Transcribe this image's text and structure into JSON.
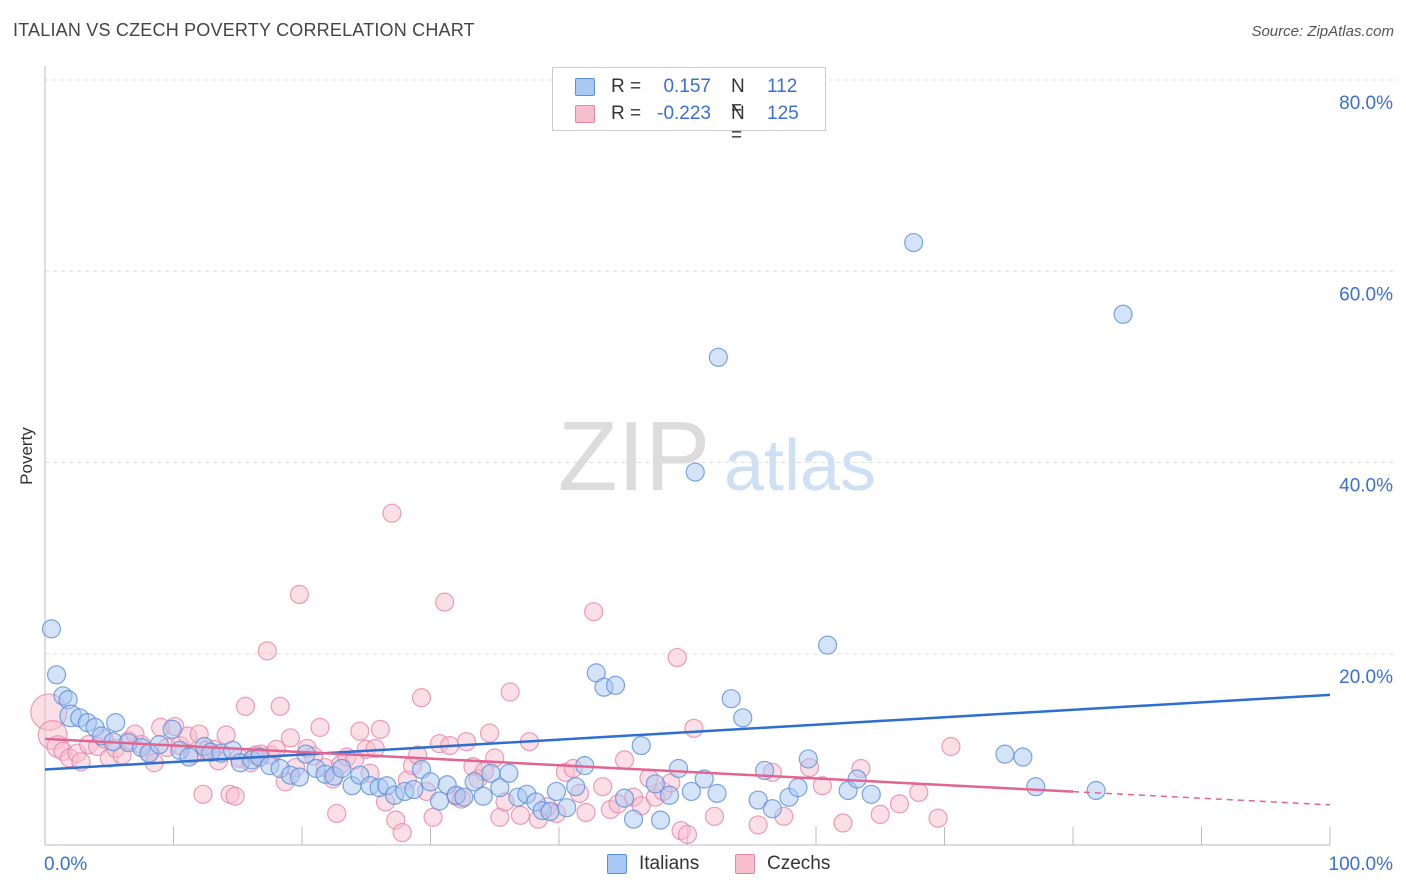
{
  "title": "ITALIAN VS CZECH POVERTY CORRELATION CHART",
  "source": "Source: ZipAtlas.com",
  "watermark": {
    "zip": "ZIP",
    "atlas": "atlas"
  },
  "legend": {
    "rows": [
      {
        "r_label": "R =",
        "r_value": "0.157",
        "n_label": "N =",
        "n_value": "112"
      },
      {
        "r_label": "R =",
        "r_value": "-0.223",
        "n_label": "N =",
        "n_value": "125"
      }
    ]
  },
  "bottom_legend": [
    "Italians",
    "Czechs"
  ],
  "colors": {
    "italians_fill": "#a9c8f2",
    "italians_stroke": "#5b8fdb",
    "italians_line": "#2c6fd1",
    "czechs_fill": "#f6bfd0",
    "czechs_stroke": "#e884a6",
    "czechs_line": "#e2658f",
    "axis_label": "#3a6fd8",
    "grid": "#dddddd"
  },
  "chart_data": {
    "type": "scatter",
    "title": "ITALIAN VS CZECH POVERTY CORRELATION CHART",
    "xlabel": "",
    "ylabel": "Poverty",
    "xlim": [
      0,
      100
    ],
    "ylim": [
      0,
      80
    ],
    "x_tick_labels": [
      "0.0%",
      "100.0%"
    ],
    "y_ticks": [
      20,
      40,
      60,
      80
    ],
    "y_tick_labels": [
      "20.0%",
      "40.0%",
      "60.0%",
      "80.0%"
    ],
    "grid": true,
    "series": [
      {
        "name": "Italians",
        "r": 0.157,
        "n": 112,
        "trend": {
          "x": [
            0,
            100
          ],
          "y": [
            7.9,
            15.7
          ],
          "dashed_from": null
        },
        "points": [
          [
            0.5,
            22.6,
            1
          ],
          [
            0.9,
            17.8,
            1
          ],
          [
            1.4,
            15.6,
            1
          ],
          [
            1.8,
            15.2,
            1
          ],
          [
            2.0,
            13.5,
            1.2
          ],
          [
            2.7,
            13.3,
            1
          ],
          [
            3.3,
            12.8,
            1
          ],
          [
            3.9,
            12.3,
            1
          ],
          [
            4.4,
            11.4,
            1
          ],
          [
            5.5,
            12.8,
            1
          ],
          [
            5.3,
            10.8,
            1
          ],
          [
            6.5,
            10.7,
            1
          ],
          [
            7.5,
            10.2,
            1
          ],
          [
            8.1,
            9.6,
            1
          ],
          [
            8.9,
            10.5,
            1
          ],
          [
            9.9,
            12.1,
            1
          ],
          [
            10.5,
            9.9,
            1
          ],
          [
            11.2,
            9.2,
            1
          ],
          [
            12.4,
            10.3,
            1
          ],
          [
            12.9,
            9.7,
            1
          ],
          [
            13.7,
            9.6,
            1
          ],
          [
            14.6,
            9.9,
            1
          ],
          [
            15.2,
            8.6,
            1
          ],
          [
            16.1,
            8.9,
            1
          ],
          [
            16.7,
            9.2,
            1
          ],
          [
            17.5,
            8.3,
            1
          ],
          [
            18.3,
            8.0,
            1
          ],
          [
            19.1,
            7.3,
            1
          ],
          [
            19.8,
            7.1,
            1
          ],
          [
            20.3,
            9.5,
            1
          ],
          [
            21.1,
            8.0,
            1
          ],
          [
            21.8,
            7.4,
            1
          ],
          [
            22.5,
            7.2,
            1
          ],
          [
            23.1,
            8.0,
            1
          ],
          [
            23.9,
            6.2,
            1
          ],
          [
            24.5,
            7.3,
            1
          ],
          [
            25.3,
            6.2,
            1
          ],
          [
            26.0,
            6.0,
            1
          ],
          [
            26.6,
            6.2,
            1
          ],
          [
            27.2,
            5.2,
            1
          ],
          [
            28.0,
            5.6,
            1
          ],
          [
            28.7,
            5.8,
            1
          ],
          [
            29.3,
            7.9,
            1
          ],
          [
            30.0,
            6.6,
            1
          ],
          [
            30.7,
            4.6,
            1
          ],
          [
            31.3,
            6.3,
            1
          ],
          [
            32.0,
            5.2,
            1
          ],
          [
            32.6,
            5.0,
            1
          ],
          [
            33.4,
            6.6,
            1
          ],
          [
            34.1,
            5.1,
            1
          ],
          [
            34.7,
            7.5,
            1
          ],
          [
            35.4,
            6.0,
            1
          ],
          [
            36.1,
            7.5,
            1
          ],
          [
            36.8,
            5.0,
            1
          ],
          [
            37.5,
            5.3,
            1
          ],
          [
            38.2,
            4.5,
            1
          ],
          [
            38.7,
            3.6,
            1
          ],
          [
            39.3,
            3.5,
            1
          ],
          [
            39.8,
            5.6,
            1
          ],
          [
            40.6,
            3.9,
            1
          ],
          [
            41.3,
            6.1,
            1
          ],
          [
            42.0,
            8.3,
            1
          ],
          [
            42.9,
            18.0,
            1
          ],
          [
            43.5,
            16.5,
            1
          ],
          [
            44.4,
            16.7,
            1
          ],
          [
            45.1,
            4.9,
            1
          ],
          [
            45.8,
            2.7,
            1
          ],
          [
            46.4,
            10.4,
            1
          ],
          [
            47.5,
            6.4,
            1
          ],
          [
            47.9,
            2.6,
            1
          ],
          [
            48.6,
            5.2,
            1
          ],
          [
            49.3,
            8.0,
            1
          ],
          [
            50.3,
            5.6,
            1
          ],
          [
            51.3,
            6.9,
            1
          ],
          [
            52.3,
            5.4,
            1
          ],
          [
            53.4,
            15.3,
            1
          ],
          [
            54.3,
            13.3,
            1
          ],
          [
            55.5,
            4.7,
            1
          ],
          [
            56.0,
            7.8,
            1
          ],
          [
            56.6,
            3.8,
            1
          ],
          [
            57.9,
            5.0,
            1
          ],
          [
            58.6,
            6.0,
            1
          ],
          [
            59.4,
            9.0,
            1
          ],
          [
            60.9,
            20.9,
            1
          ],
          [
            62.5,
            5.7,
            1
          ],
          [
            63.2,
            6.9,
            1
          ],
          [
            64.3,
            5.3,
            1
          ],
          [
            50.6,
            39.0,
            1
          ],
          [
            52.4,
            51.0,
            1
          ],
          [
            67.6,
            63.0,
            1
          ],
          [
            74.7,
            9.5,
            1
          ],
          [
            76.1,
            9.2,
            1
          ],
          [
            77.1,
            6.1,
            1
          ],
          [
            81.8,
            5.7,
            1
          ],
          [
            83.9,
            55.5,
            1
          ]
        ]
      },
      {
        "name": "Czechs",
        "r": -0.223,
        "n": 125,
        "trend": {
          "x": [
            0,
            100
          ],
          "y": [
            11.1,
            4.2
          ],
          "dashed_from": 80
        },
        "points": [
          [
            0.3,
            13.9,
            2.0
          ],
          [
            0.6,
            11.5,
            1.6
          ],
          [
            1.0,
            10.3,
            1.2
          ],
          [
            1.4,
            9.8,
            1
          ],
          [
            1.9,
            9.1,
            1
          ],
          [
            2.5,
            9.6,
            1
          ],
          [
            2.8,
            8.7,
            1
          ],
          [
            3.4,
            10.5,
            1
          ],
          [
            4.1,
            10.3,
            1
          ],
          [
            4.6,
            11.1,
            1
          ],
          [
            5.0,
            9.1,
            1
          ],
          [
            5.5,
            10.1,
            1
          ],
          [
            6.0,
            9.4,
            1
          ],
          [
            6.5,
            10.9,
            1
          ],
          [
            7.0,
            11.6,
            1
          ],
          [
            7.5,
            10.5,
            1
          ],
          [
            8.1,
            9.6,
            1
          ],
          [
            8.5,
            8.6,
            1
          ],
          [
            9.0,
            12.3,
            1
          ],
          [
            9.5,
            10.2,
            1
          ],
          [
            10.1,
            12.4,
            1
          ],
          [
            10.5,
            10.4,
            1
          ],
          [
            11.1,
            11.4,
            1
          ],
          [
            11.5,
            9.5,
            1
          ],
          [
            12.0,
            11.6,
            1
          ],
          [
            12.3,
            5.3,
            1
          ],
          [
            12.6,
            9.9,
            1
          ],
          [
            13.1,
            10.0,
            1
          ],
          [
            13.5,
            8.8,
            1
          ],
          [
            14.1,
            11.5,
            1
          ],
          [
            14.4,
            5.3,
            1
          ],
          [
            14.8,
            5.1,
            1
          ],
          [
            15.1,
            9.1,
            1
          ],
          [
            15.6,
            14.5,
            1
          ],
          [
            16.0,
            8.6,
            1
          ],
          [
            16.4,
            9.4,
            1
          ],
          [
            16.8,
            9.5,
            1
          ],
          [
            17.3,
            20.3,
            1
          ],
          [
            17.6,
            9.4,
            1
          ],
          [
            18.0,
            10.0,
            1
          ],
          [
            18.3,
            14.5,
            1
          ],
          [
            18.7,
            6.6,
            1
          ],
          [
            19.1,
            11.2,
            1
          ],
          [
            19.5,
            8.1,
            1
          ],
          [
            19.8,
            26.2,
            1
          ],
          [
            20.4,
            10.1,
            1
          ],
          [
            20.9,
            9.3,
            1
          ],
          [
            21.4,
            12.3,
            1
          ],
          [
            21.8,
            8.1,
            1
          ],
          [
            22.4,
            6.9,
            1
          ],
          [
            22.7,
            3.3,
            1
          ],
          [
            23.0,
            8.4,
            1
          ],
          [
            23.5,
            9.2,
            1
          ],
          [
            24.1,
            8.9,
            1
          ],
          [
            24.5,
            11.9,
            1
          ],
          [
            25.0,
            10.0,
            1
          ],
          [
            25.3,
            7.5,
            1
          ],
          [
            25.7,
            10.1,
            1
          ],
          [
            26.1,
            12.1,
            1
          ],
          [
            26.5,
            4.5,
            1
          ],
          [
            27.0,
            34.7,
            1
          ],
          [
            27.3,
            2.6,
            1
          ],
          [
            27.8,
            1.3,
            1
          ],
          [
            28.2,
            6.8,
            1
          ],
          [
            28.6,
            8.3,
            1
          ],
          [
            29.0,
            9.4,
            1
          ],
          [
            29.3,
            15.4,
            1
          ],
          [
            29.7,
            5.6,
            1
          ],
          [
            30.2,
            2.9,
            1
          ],
          [
            30.7,
            10.6,
            1
          ],
          [
            31.1,
            25.4,
            1
          ],
          [
            31.5,
            10.4,
            1
          ],
          [
            32.0,
            5.1,
            1
          ],
          [
            32.4,
            4.8,
            1
          ],
          [
            32.8,
            10.8,
            1
          ],
          [
            33.3,
            8.2,
            1
          ],
          [
            33.7,
            6.9,
            1
          ],
          [
            34.2,
            7.7,
            1
          ],
          [
            34.6,
            11.7,
            1
          ],
          [
            35.0,
            9.1,
            1
          ],
          [
            35.4,
            2.9,
            1
          ],
          [
            35.8,
            4.5,
            1
          ],
          [
            36.2,
            16.0,
            1
          ],
          [
            37.0,
            3.1,
            1
          ],
          [
            37.7,
            10.8,
            1
          ],
          [
            38.4,
            2.7,
            1
          ],
          [
            39.1,
            4.0,
            1
          ],
          [
            39.8,
            3.3,
            1
          ],
          [
            40.5,
            7.6,
            1
          ],
          [
            41.1,
            8.0,
            1
          ],
          [
            41.6,
            5.4,
            1
          ],
          [
            42.1,
            3.4,
            1
          ],
          [
            42.7,
            24.4,
            1
          ],
          [
            43.4,
            6.1,
            1
          ],
          [
            44.0,
            3.7,
            1
          ],
          [
            44.6,
            4.3,
            1
          ],
          [
            45.1,
            8.9,
            1
          ],
          [
            45.8,
            5.0,
            1
          ],
          [
            46.4,
            4.1,
            1
          ],
          [
            47.0,
            7.0,
            1
          ],
          [
            47.5,
            5.0,
            1
          ],
          [
            48.1,
            5.6,
            1
          ],
          [
            48.7,
            6.5,
            1
          ],
          [
            49.2,
            19.6,
            1
          ],
          [
            49.5,
            1.5,
            1
          ],
          [
            50.0,
            1.1,
            1
          ],
          [
            50.5,
            12.2,
            1
          ],
          [
            52.1,
            3.0,
            1
          ],
          [
            55.5,
            2.1,
            1
          ],
          [
            56.6,
            7.6,
            1
          ],
          [
            57.5,
            3.0,
            1
          ],
          [
            59.5,
            8.1,
            1
          ],
          [
            60.5,
            6.2,
            1
          ],
          [
            62.1,
            2.3,
            1
          ],
          [
            63.5,
            8.0,
            1
          ],
          [
            65.0,
            3.2,
            1
          ],
          [
            66.5,
            4.3,
            1
          ],
          [
            68.0,
            5.5,
            1
          ],
          [
            69.5,
            2.8,
            1
          ],
          [
            70.5,
            10.3,
            1
          ]
        ]
      }
    ]
  }
}
